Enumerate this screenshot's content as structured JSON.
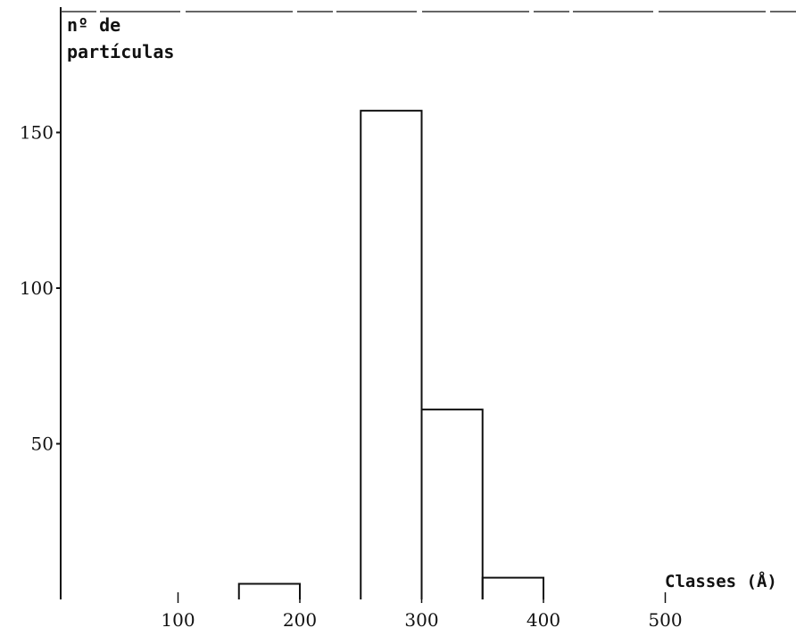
{
  "chart_data": {
    "type": "bar",
    "title": "",
    "ylabel_lines": [
      "nº de",
      "partículas"
    ],
    "xlabel": "Classes (Å)",
    "x_ticks": [
      100,
      200,
      300,
      400,
      500
    ],
    "y_ticks": [
      50,
      100,
      150
    ],
    "xlim": [
      0,
      600
    ],
    "ylim": [
      0,
      190
    ],
    "grid": false,
    "bins": [
      {
        "start": 150,
        "end": 200,
        "value": 5
      },
      {
        "start": 250,
        "end": 300,
        "value": 157
      },
      {
        "start": 300,
        "end": 350,
        "value": 61
      },
      {
        "start": 350,
        "end": 400,
        "value": 7
      }
    ],
    "colors": {
      "axis": "#111111",
      "bar_edge": "#111111",
      "background": "#ffffff"
    }
  }
}
